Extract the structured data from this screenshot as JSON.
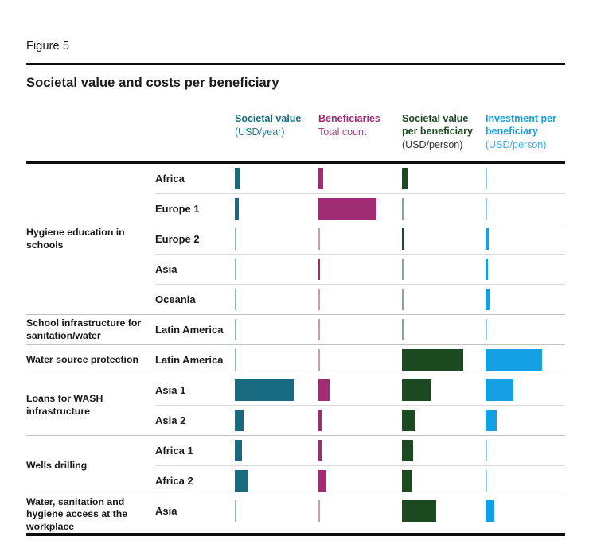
{
  "figure_label": "Figure 5",
  "title": "Societal value and costs per beneficiary",
  "columns": [
    {
      "title": "Societal value",
      "subtitle": "(USD/year)",
      "color": "#176A80",
      "title_color": "#176A80",
      "subtitle_color": "#2E7A90"
    },
    {
      "title": "Beneficiaries",
      "subtitle": "Total count",
      "color": "#A02C74",
      "title_color": "#A02C74",
      "subtitle_color": "#A84583"
    },
    {
      "title": "Societal value per beneficiary",
      "subtitle": "(USD/person)",
      "color": "#1C4A20",
      "title_color": "#1C4A20",
      "subtitle_color": "#333333"
    },
    {
      "title": "Investment per beneficiary",
      "subtitle": "(USD/person)",
      "color": "#14A0E2",
      "title_color": "#14A0E2",
      "subtitle_color": "#3FAEE4"
    }
  ],
  "chart_data": {
    "type": "bar",
    "title": "Societal value and costs per beneficiary",
    "series_names": [
      "Societal value (USD/year)",
      "Beneficiaries Total count",
      "Societal value per beneficiary (USD/person)",
      "Investment per beneficiary (USD/person)"
    ],
    "value_scale": "relative bar length, 0-100 units per column (estimated from pixels, column max = 100)",
    "legend_position": "top",
    "grid": false,
    "groups": [
      {
        "label": "Hygiene education in schools",
        "rows": [
          {
            "region": "Africa",
            "values": [
              6,
              6,
              7,
              1
            ]
          },
          {
            "region": "Europe 1",
            "values": [
              5,
              73,
              1,
              1
            ]
          },
          {
            "region": "Europe 2",
            "values": [
              1,
              1,
              2,
              4
            ]
          },
          {
            "region": "Asia",
            "values": [
              1,
              2,
              1,
              3
            ]
          },
          {
            "region": "Oceania",
            "values": [
              1,
              1,
              1,
              6
            ]
          }
        ]
      },
      {
        "label": "School infrastructure for sanitation/water",
        "rows": [
          {
            "region": "Latin America",
            "values": [
              1,
              1,
              1,
              1
            ]
          }
        ]
      },
      {
        "label": "Water source protection",
        "rows": [
          {
            "region": "Latin America",
            "values": [
              1,
              1,
              77,
              71
            ]
          }
        ]
      },
      {
        "label": "Loans for WASH infrastructure",
        "rows": [
          {
            "region": "Asia 1",
            "values": [
              75,
              14,
              37,
              35
            ]
          },
          {
            "region": "Asia 2",
            "values": [
              11,
              4,
              17,
              14
            ]
          }
        ]
      },
      {
        "label": "Wells drilling",
        "rows": [
          {
            "region": "Africa 1",
            "values": [
              9,
              4,
              14,
              1
            ]
          },
          {
            "region": "Africa 2",
            "values": [
              16,
              10,
              12,
              1
            ]
          }
        ]
      },
      {
        "label": "Water, sanitation and hygiene access at the workplace",
        "rows": [
          {
            "region": "Asia",
            "values": [
              1,
              1,
              43,
              11
            ]
          }
        ]
      }
    ]
  }
}
